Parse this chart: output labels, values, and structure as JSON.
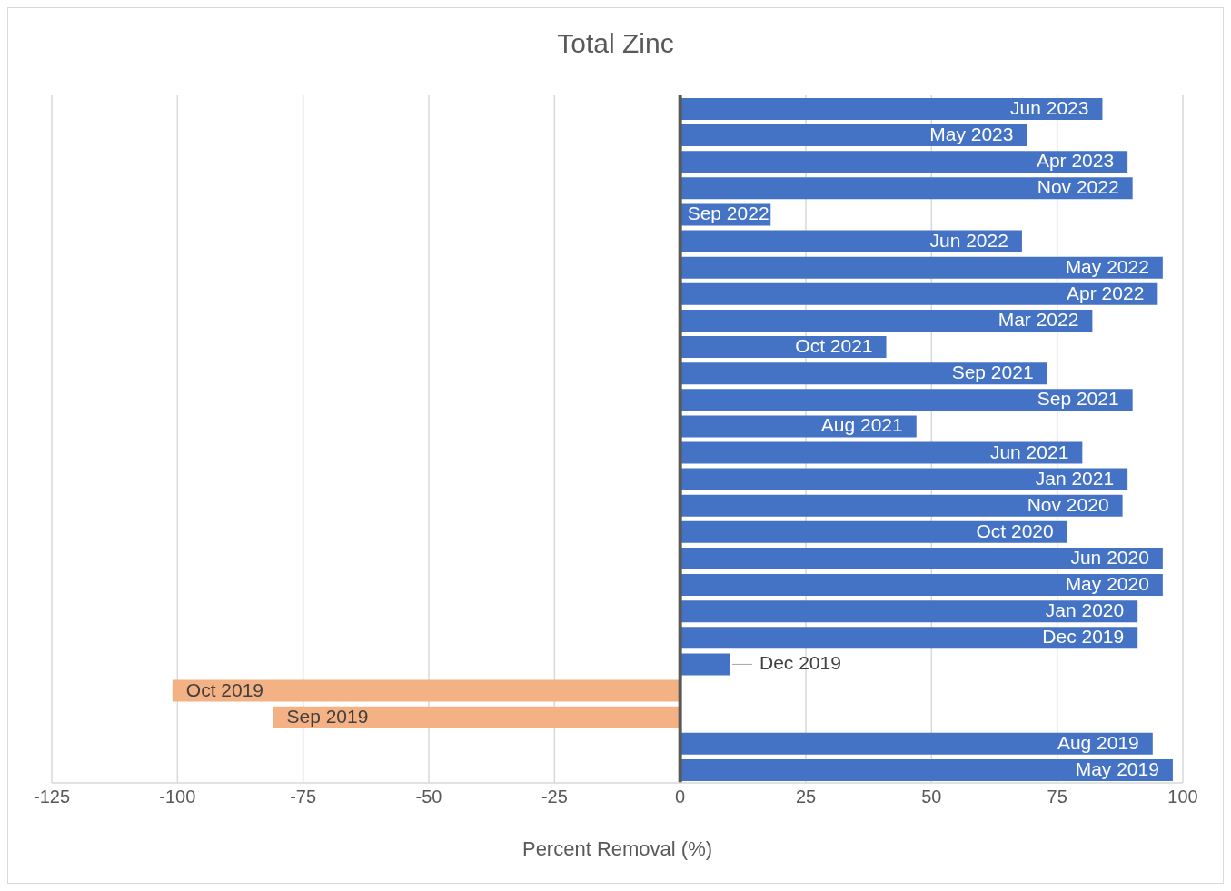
{
  "chart_data": {
    "type": "bar",
    "orientation": "horizontal",
    "title": "Total Zinc",
    "xlabel": "Percent Removal (%)",
    "categories": [
      "Jun 2023",
      "May 2023",
      "Apr 2023",
      "Nov 2022",
      "Sep 2022",
      "Jun 2022",
      "May 2022",
      "Apr 2022",
      "Mar 2022",
      "Oct 2021",
      "Sep 2021",
      "Sep 2021",
      "Aug 2021",
      "Jun 2021",
      "Jan 2021",
      "Nov 2020",
      "Oct 2020",
      "Jun 2020",
      "May 2020",
      "Jan 2020",
      "Dec 2019",
      "Dec 2019",
      "Oct 2019",
      "Sep 2019",
      "Aug 2019",
      "May 2019"
    ],
    "values": [
      84,
      69,
      89,
      90,
      18,
      68,
      96,
      95,
      82,
      41,
      73,
      90,
      47,
      80,
      89,
      88,
      77,
      96,
      96,
      91,
      91,
      10,
      -101,
      -81,
      94,
      98
    ],
    "colors": [
      "#4472c4",
      "#4472c4",
      "#4472c4",
      "#4472c4",
      "#4472c4",
      "#4472c4",
      "#4472c4",
      "#4472c4",
      "#4472c4",
      "#4472c4",
      "#4472c4",
      "#4472c4",
      "#4472c4",
      "#4472c4",
      "#4472c4",
      "#4472c4",
      "#4472c4",
      "#4472c4",
      "#4472c4",
      "#4472c4",
      "#4472c4",
      "#4472c4",
      "#f4b183",
      "#f4b183",
      "#4472c4",
      "#4472c4"
    ],
    "xlim": [
      -125,
      100
    ],
    "xticks": [
      -125,
      -100,
      -75,
      -50,
      -25,
      0,
      25,
      50,
      75,
      100
    ],
    "grid": "x",
    "tick_labels": "x",
    "ref_lines": [
      {
        "axis": "x",
        "value": 0,
        "color": "#595959"
      }
    ]
  }
}
